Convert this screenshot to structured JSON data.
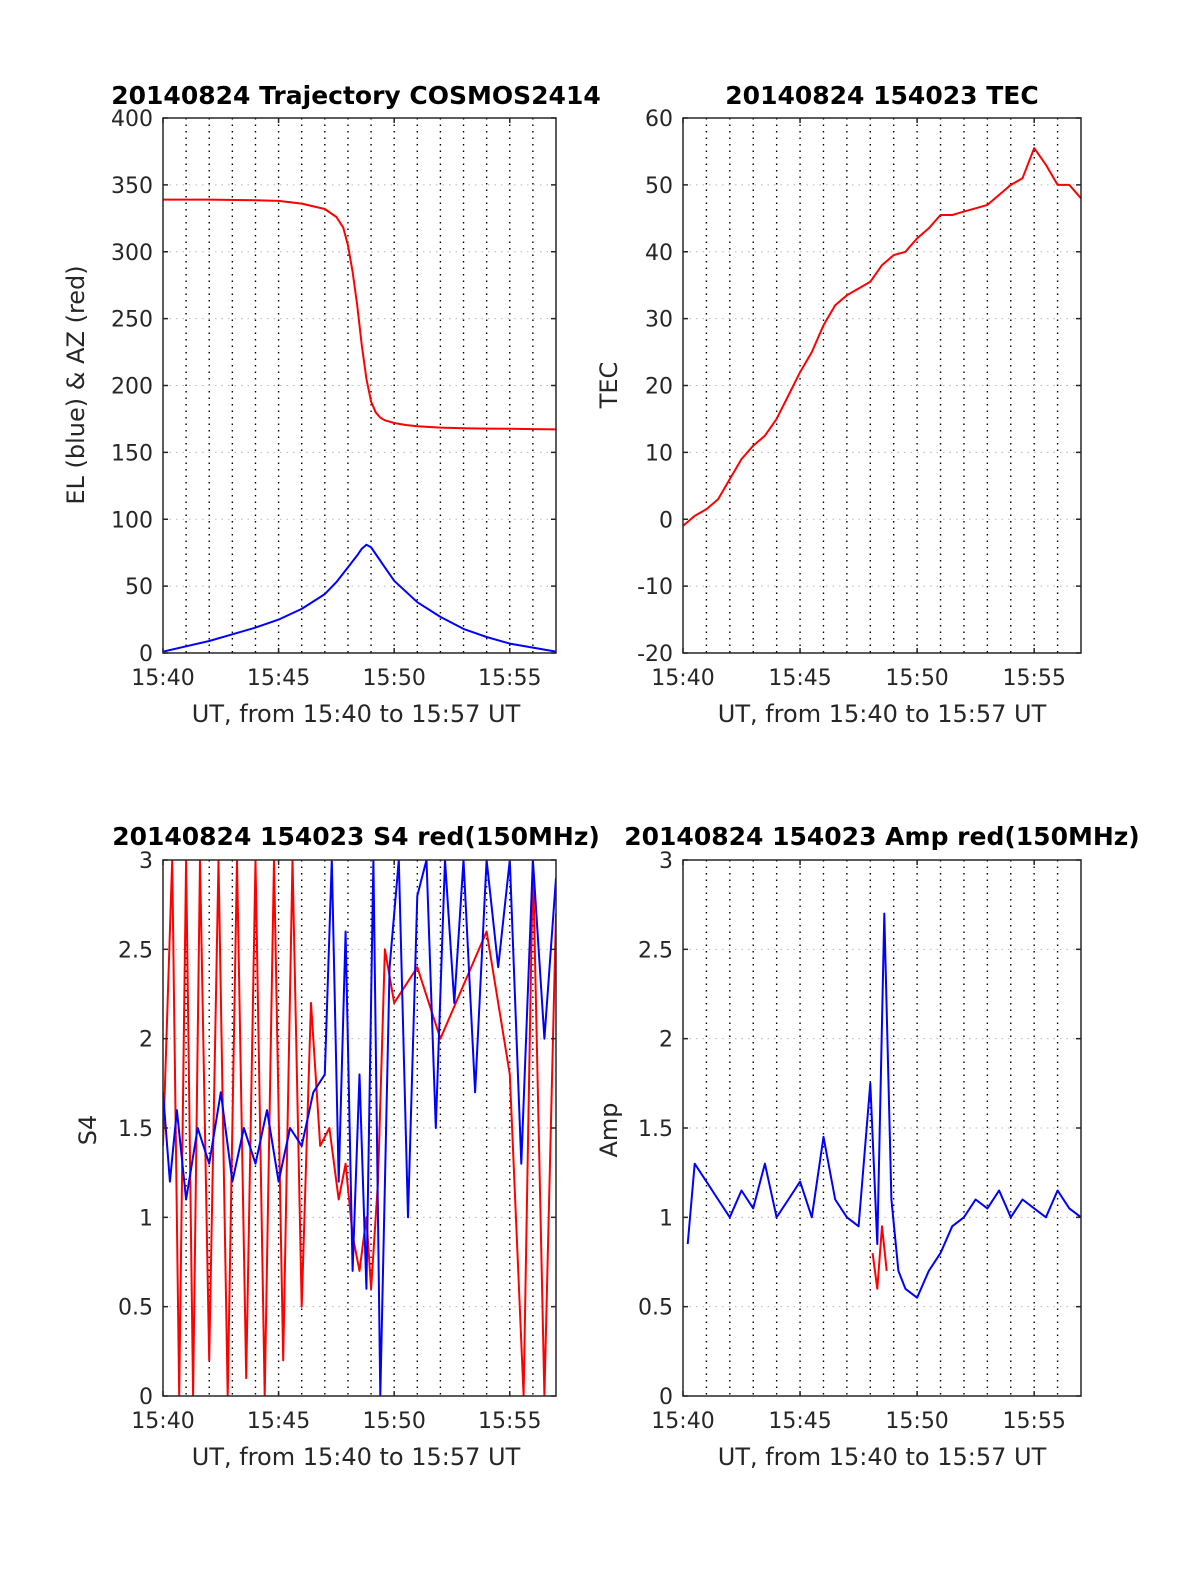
{
  "figure": {
    "background": "#ffffff",
    "axis_color": "#262626",
    "grid": "on",
    "grid_style": "dotted"
  },
  "chart_data": [
    {
      "id": "trajectory",
      "type": "line",
      "title": "20140824 Trajectory COSMOS2414",
      "xlabel": "UT, from 15:40 to 15:57 UT",
      "ylabel": "EL (blue) & AZ (red)",
      "xlim": [
        0,
        17
      ],
      "ylim": [
        0,
        400
      ],
      "xticks": [
        0,
        5,
        10,
        15
      ],
      "xtick_labels": [
        "15:40",
        "15:45",
        "15:50",
        "15:55"
      ],
      "yticks": [
        0,
        50,
        100,
        150,
        200,
        250,
        300,
        350,
        400
      ],
      "ytick_labels": [
        "0",
        "50",
        "100",
        "150",
        "200",
        "250",
        "300",
        "350",
        "400"
      ],
      "series": [
        {
          "color": "#ff0000",
          "x": [
            0,
            2,
            4,
            5,
            6,
            7,
            7.5,
            7.8,
            8,
            8.2,
            8.4,
            8.6,
            8.8,
            9.0,
            9.2,
            9.4,
            9.6,
            10,
            10.5,
            11,
            12,
            13,
            14,
            15,
            16,
            17
          ],
          "y": [
            339,
            339,
            338.5,
            338,
            336,
            332,
            326,
            318,
            305,
            285,
            260,
            230,
            205,
            188,
            180,
            176,
            174,
            172,
            170.5,
            169.5,
            168.5,
            168,
            167.8,
            167.6,
            167.4,
            167.2
          ]
        },
        {
          "color": "#0000ff",
          "x": [
            0,
            1,
            2,
            3,
            4,
            5,
            6,
            7,
            7.5,
            8,
            8.4,
            8.6,
            8.8,
            9.0,
            9.2,
            9.6,
            10,
            11,
            12,
            13,
            14,
            15,
            16,
            17
          ],
          "y": [
            1,
            5,
            9,
            14,
            19,
            25,
            33,
            44,
            53,
            64,
            73,
            78,
            81,
            79,
            74,
            64,
            54,
            38,
            27,
            18,
            12,
            7,
            4,
            1
          ]
        }
      ]
    },
    {
      "id": "tec",
      "type": "line",
      "title": "20140824 154023 TEC",
      "xlabel": "UT, from 15:40 to 15:57 UT",
      "ylabel": "TEC",
      "xlim": [
        0,
        17
      ],
      "ylim": [
        -20,
        60
      ],
      "xticks": [
        0,
        5,
        10,
        15
      ],
      "xtick_labels": [
        "15:40",
        "15:45",
        "15:50",
        "15:55"
      ],
      "yticks": [
        -20,
        -10,
        0,
        10,
        20,
        30,
        40,
        50,
        60
      ],
      "ytick_labels": [
        "-20",
        "-10",
        "0",
        "10",
        "20",
        "30",
        "40",
        "50",
        "60"
      ],
      "series": [
        {
          "color": "#ff0000",
          "x": [
            0,
            0.5,
            1,
            1.5,
            2,
            2.5,
            3,
            3.5,
            4,
            4.5,
            5,
            5.5,
            6,
            6.5,
            7,
            7.5,
            8,
            8.5,
            9,
            9.5,
            10,
            10.5,
            11,
            11.5,
            12,
            12.5,
            13,
            13.5,
            14,
            14.5,
            15,
            15.5,
            16,
            16.5,
            17
          ],
          "y": [
            -1,
            0.5,
            1.5,
            3,
            6,
            9,
            11,
            12.5,
            15,
            18.5,
            22,
            25,
            29,
            32,
            33.5,
            34.5,
            35.5,
            38,
            39.5,
            40,
            42,
            43.5,
            45.5,
            45.5,
            46,
            46.5,
            47,
            48.5,
            50,
            51,
            55.5,
            53,
            50,
            50,
            48
          ]
        }
      ]
    },
    {
      "id": "s4",
      "type": "line",
      "title": "20140824 154023 S4 red(150MHz)",
      "xlabel": "UT, from 15:40 to 15:57 UT",
      "ylabel": "S4",
      "xlim": [
        0,
        17
      ],
      "ylim": [
        0,
        3
      ],
      "xticks": [
        0,
        5,
        10,
        15
      ],
      "xtick_labels": [
        "15:40",
        "15:45",
        "15:50",
        "15:55"
      ],
      "yticks": [
        0,
        0.5,
        1,
        1.5,
        2,
        2.5,
        3
      ],
      "ytick_labels": [
        "0",
        "0.5",
        "1",
        "1.5",
        "2",
        "2.5",
        "3"
      ],
      "series": [
        {
          "color": "#ff0000",
          "x": [
            0,
            0.4,
            0.7,
            1.0,
            1.3,
            1.6,
            2.0,
            2.4,
            2.8,
            3.2,
            3.6,
            4.0,
            4.4,
            4.8,
            5.2,
            5.6,
            6.0,
            6.4,
            6.8,
            7.2,
            7.6,
            7.9,
            8.2,
            8.5,
            8.8,
            9.0,
            9.3,
            9.6,
            10.0,
            11.0,
            12.0,
            13.0,
            14.0,
            15.0,
            15.6,
            16.0,
            16.5,
            17.0
          ],
          "y": [
            1.4,
            3.0,
            0.0,
            3.0,
            0.0,
            3.0,
            0.2,
            3.0,
            0.0,
            3.0,
            0.1,
            3.0,
            0.0,
            3.0,
            0.2,
            3.0,
            0.5,
            2.2,
            1.4,
            1.5,
            1.1,
            1.3,
            0.9,
            0.7,
            1.0,
            0.6,
            1.2,
            2.5,
            2.2,
            2.4,
            2.0,
            2.3,
            2.6,
            1.8,
            0.0,
            3.0,
            0.0,
            2.7
          ]
        },
        {
          "color": "#0000ff",
          "x": [
            0,
            0.3,
            0.6,
            1.0,
            1.5,
            2.0,
            2.5,
            3.0,
            3.5,
            4.0,
            4.5,
            5.0,
            5.5,
            6.0,
            6.5,
            7.0,
            7.3,
            7.6,
            7.9,
            8.2,
            8.5,
            8.8,
            9.1,
            9.4,
            9.8,
            10.2,
            10.6,
            11.0,
            11.4,
            11.8,
            12.2,
            12.6,
            13.0,
            13.5,
            14.0,
            14.5,
            15.0,
            15.5,
            16.0,
            16.5,
            17.0
          ],
          "y": [
            1.7,
            1.2,
            1.6,
            1.1,
            1.5,
            1.3,
            1.7,
            1.2,
            1.5,
            1.3,
            1.6,
            1.2,
            1.5,
            1.4,
            1.7,
            1.8,
            3.0,
            1.2,
            2.6,
            0.7,
            1.8,
            0.6,
            3.0,
            0.0,
            2.4,
            3.0,
            1.0,
            2.8,
            3.0,
            1.5,
            3.0,
            2.2,
            3.0,
            1.7,
            3.0,
            2.4,
            3.0,
            1.3,
            3.0,
            2.0,
            2.9
          ]
        }
      ]
    },
    {
      "id": "amp",
      "type": "line",
      "title": "20140824 154023 Amp red(150MHz)",
      "xlabel": "UT, from 15:40 to 15:57 UT",
      "ylabel": "Amp",
      "xlim": [
        0,
        17
      ],
      "ylim": [
        0,
        3
      ],
      "xticks": [
        0,
        5,
        10,
        15
      ],
      "xtick_labels": [
        "15:40",
        "15:45",
        "15:50",
        "15:55"
      ],
      "yticks": [
        0,
        0.5,
        1,
        1.5,
        2,
        2.5,
        3
      ],
      "ytick_labels": [
        "0",
        "0.5",
        "1",
        "1.5",
        "2",
        "2.5",
        "3"
      ],
      "series": [
        {
          "color": "#ff0000",
          "x": [
            8.1,
            8.3,
            8.5,
            8.7
          ],
          "y": [
            0.8,
            0.6,
            0.95,
            0.7
          ]
        },
        {
          "color": "#0000ff",
          "x": [
            0.2,
            0.5,
            1.0,
            1.5,
            2.0,
            2.5,
            3.0,
            3.5,
            4.0,
            4.5,
            5.0,
            5.5,
            6.0,
            6.5,
            7.0,
            7.5,
            8.0,
            8.3,
            8.6,
            8.9,
            9.2,
            9.5,
            10.0,
            10.5,
            11.0,
            11.5,
            12.0,
            12.5,
            13.0,
            13.5,
            14.0,
            14.5,
            15.0,
            15.5,
            16.0,
            16.5,
            17.0
          ],
          "y": [
            0.85,
            1.3,
            1.2,
            1.1,
            1.0,
            1.15,
            1.05,
            1.3,
            1.0,
            1.1,
            1.2,
            1.0,
            1.45,
            1.1,
            1.0,
            0.95,
            1.75,
            0.85,
            2.7,
            1.1,
            0.7,
            0.6,
            0.55,
            0.7,
            0.8,
            0.95,
            1.0,
            1.1,
            1.05,
            1.15,
            1.0,
            1.1,
            1.05,
            1.0,
            1.15,
            1.05,
            1.0
          ]
        }
      ]
    }
  ]
}
